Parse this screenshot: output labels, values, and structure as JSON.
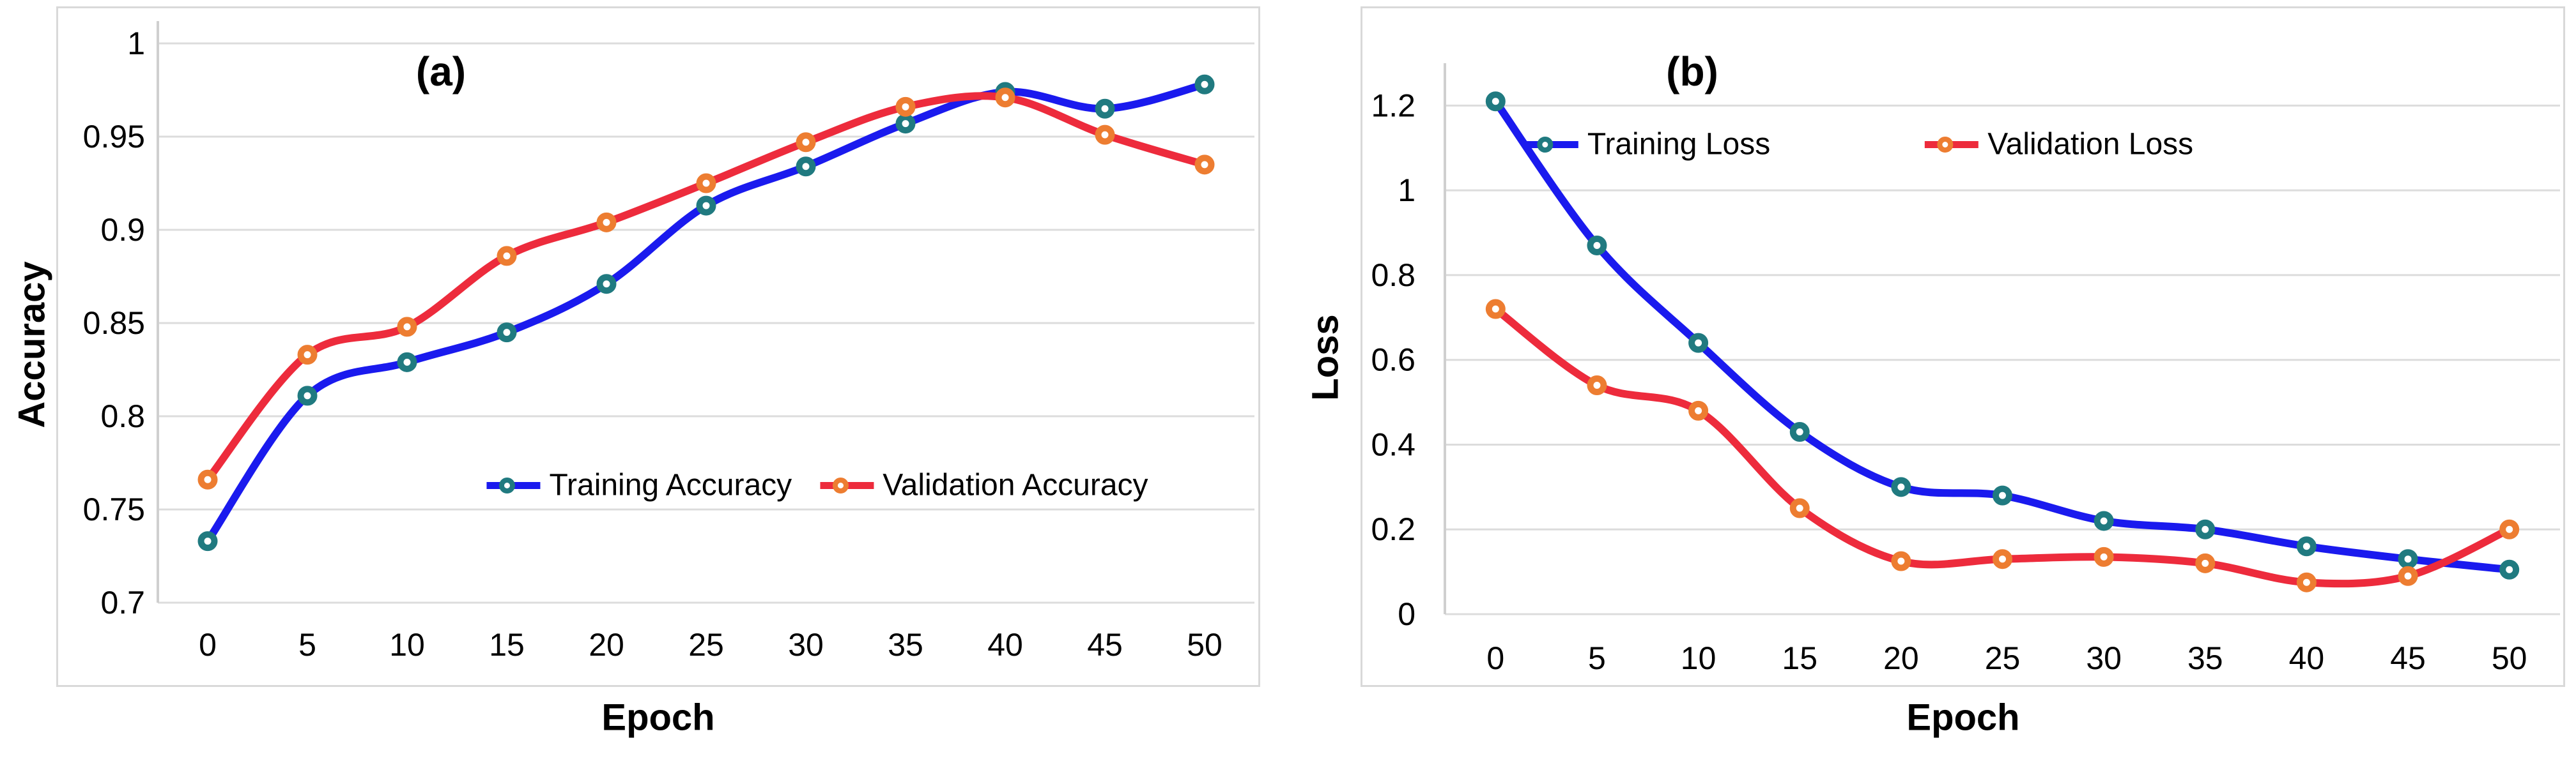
{
  "colors": {
    "training_line": "#1a1aee",
    "training_marker": "#207a80",
    "validation_line": "#ed2b3c",
    "validation_marker": "#ed7d31",
    "gridline": "#dcdcdc",
    "axis_line": "#cfcfcf",
    "panel_border": "#d9d9d9",
    "text": "#000000",
    "background": "#ffffff"
  },
  "chart_data": [
    {
      "type": "line",
      "panel_label": "(a)",
      "xlabel": "Epoch",
      "ylabel": "Accuracy",
      "grid": true,
      "legend_position": "inside bottom center",
      "x": [
        0,
        5,
        10,
        15,
        20,
        25,
        30,
        35,
        40,
        45,
        50
      ],
      "xtick_labels": [
        "0",
        "5",
        "10",
        "15",
        "20",
        "25",
        "30",
        "35",
        "40",
        "45",
        "50"
      ],
      "ylim": [
        0.7,
        1.012
      ],
      "yticks": [
        {
          "value": 1.0,
          "label": "1"
        },
        {
          "value": 0.95,
          "label": "0.95"
        },
        {
          "value": 0.9,
          "label": "0.9"
        },
        {
          "value": 0.85,
          "label": "0.85"
        },
        {
          "value": 0.8,
          "label": "0.8"
        },
        {
          "value": 0.75,
          "label": "0.75"
        },
        {
          "value": 0.7,
          "label": "0.7"
        }
      ],
      "series": [
        {
          "name": "Training Accuracy",
          "line_color": "#1a1aee",
          "marker_color": "#207a80",
          "values": [
            0.733,
            0.811,
            0.829,
            0.845,
            0.871,
            0.913,
            0.934,
            0.957,
            0.974,
            0.965,
            0.978
          ]
        },
        {
          "name": "Validation Accuracy",
          "line_color": "#ed2b3c",
          "marker_color": "#ed7d31",
          "values": [
            0.766,
            0.833,
            0.848,
            0.886,
            0.904,
            0.925,
            0.947,
            0.966,
            0.971,
            0.951,
            0.935
          ]
        }
      ]
    },
    {
      "type": "line",
      "panel_label": "(b)",
      "xlabel": "Epoch",
      "ylabel": "Loss",
      "grid": true,
      "legend_position": "inside top center",
      "x": [
        0,
        5,
        10,
        15,
        20,
        25,
        30,
        35,
        40,
        45,
        50
      ],
      "xtick_labels": [
        "0",
        "5",
        "10",
        "15",
        "20",
        "25",
        "30",
        "35",
        "40",
        "45",
        "50"
      ],
      "ylim": [
        0,
        1.3
      ],
      "yticks": [
        {
          "value": 1.2,
          "label": "1.2"
        },
        {
          "value": 1.0,
          "label": "1"
        },
        {
          "value": 0.8,
          "label": "0.8"
        },
        {
          "value": 0.6,
          "label": "0.6"
        },
        {
          "value": 0.4,
          "label": "0.4"
        },
        {
          "value": 0.2,
          "label": "0.2"
        },
        {
          "value": 0.0,
          "label": "0"
        }
      ],
      "series": [
        {
          "name": "Training Loss",
          "line_color": "#1a1aee",
          "marker_color": "#207a80",
          "values": [
            1.21,
            0.87,
            0.64,
            0.43,
            0.3,
            0.28,
            0.22,
            0.2,
            0.16,
            0.13,
            0.105
          ]
        },
        {
          "name": "Validation Loss",
          "line_color": "#ed2b3c",
          "marker_color": "#ed7d31",
          "values": [
            0.72,
            0.54,
            0.48,
            0.25,
            0.125,
            0.13,
            0.135,
            0.12,
            0.075,
            0.09,
            0.2
          ]
        }
      ]
    }
  ]
}
